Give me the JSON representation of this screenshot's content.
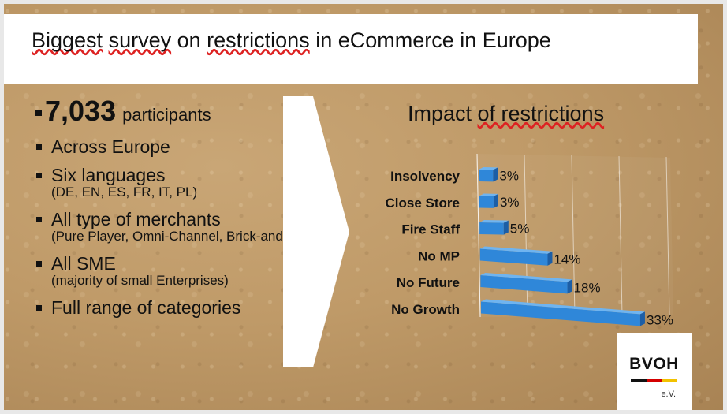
{
  "title": {
    "parts": [
      {
        "text": "Biggest",
        "squiggle": true
      },
      {
        "text": " ",
        "squiggle": false
      },
      {
        "text": "survey",
        "squiggle": true
      },
      {
        "text": " on ",
        "squiggle": false
      },
      {
        "text": "restrictions",
        "squiggle": true
      },
      {
        "text": " in eCommerce in Europe",
        "squiggle": false
      }
    ]
  },
  "highlight": {
    "number": "7,033",
    "label": "participants"
  },
  "bullets": [
    {
      "main": "Across Europe",
      "sub": ""
    },
    {
      "main": "Six languages",
      "sub": "(DE, EN, ES, FR, IT, PL)"
    },
    {
      "main": "All type of merchants",
      "sub": "(Pure Player, Omni-Channel, Brick-and-Mortar)"
    },
    {
      "main": "All SME",
      "sub": "(majority of small Enterprises)"
    },
    {
      "main": "Full range of categories",
      "sub": ""
    }
  ],
  "chart_title": {
    "before": "Impact ",
    "squiggle": "of restrictions"
  },
  "chart_data": {
    "type": "bar",
    "orientation": "horizontal",
    "title": "Impact of restrictions",
    "categories": [
      "Insolvency",
      "Close Store",
      "Fire Staff",
      "No MP",
      "No Future",
      "No Growth"
    ],
    "values": [
      3,
      3,
      5,
      14,
      18,
      33
    ],
    "value_labels": [
      "3%",
      "3%",
      "5%",
      "14%",
      "18%",
      "33%"
    ],
    "unit": "%",
    "xlim": [
      0,
      40
    ],
    "grid": true,
    "style": "3d"
  },
  "colors": {
    "bar": "#2f87d9",
    "bar_top": "#6fb4f0",
    "bar_side": "#1c5ea6"
  },
  "logo": {
    "text": "BVOH",
    "sub": "e.V."
  }
}
